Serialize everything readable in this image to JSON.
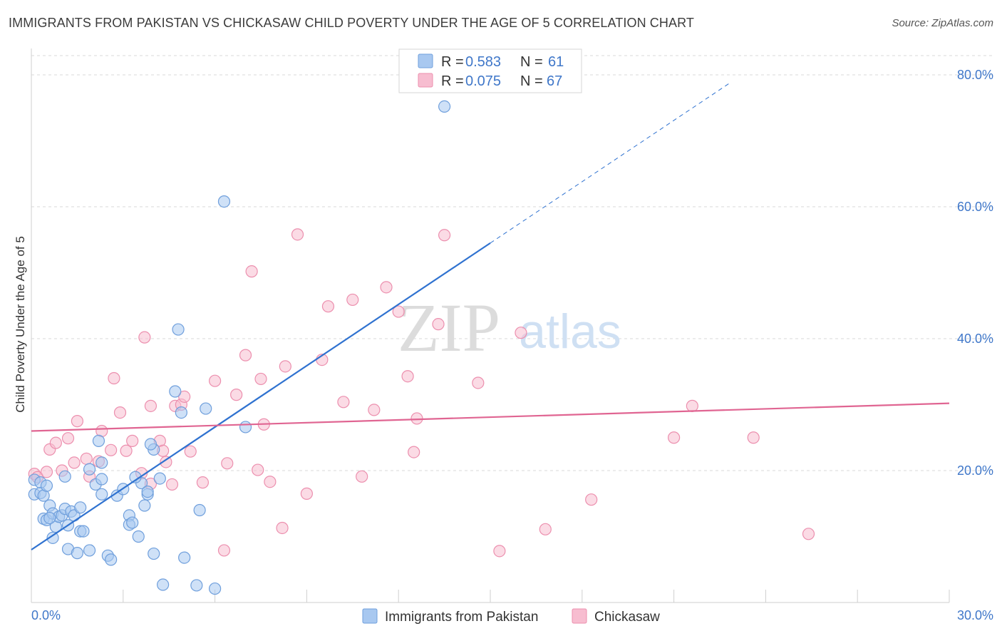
{
  "header": {
    "title": "IMMIGRANTS FROM PAKISTAN VS CHICKASAW CHILD POVERTY UNDER THE AGE OF 5 CORRELATION CHART",
    "source": "Source: ZipAtlas.com"
  },
  "watermark": {
    "zip": "ZIP",
    "atlas": "atlas"
  },
  "colors": {
    "blue_fill": "#a8c8f0",
    "blue_stroke": "#6f9fdc",
    "blue_line": "#2f72d0",
    "pink_fill": "#f7bdd0",
    "pink_stroke": "#ec8fae",
    "pink_line": "#e06592",
    "tick_text": "#3f77c9",
    "grid": "#d9d9d9"
  },
  "chart_data": {
    "type": "scatter",
    "title": "IMMIGRANTS FROM PAKISTAN VS CHICKASAW CHILD POVERTY UNDER THE AGE OF 5 CORRELATION CHART",
    "xlabel": "",
    "ylabel": "Child Poverty Under the Age of 5",
    "xlim": [
      0,
      30
    ],
    "ylim": [
      0,
      84
    ],
    "x_tick_labels": [
      "0.0%",
      "30.0%"
    ],
    "y_ticks": [
      20,
      40,
      60,
      80
    ],
    "y_tick_labels": [
      "20.0%",
      "40.0%",
      "60.0%",
      "80.0%"
    ],
    "legend": [
      {
        "r_label": "R =",
        "r_value": "0.583",
        "n_label": "N =",
        "n_value": "61"
      },
      {
        "r_label": "R =",
        "r_value": "0.075",
        "n_label": "N =",
        "n_value": "67"
      }
    ],
    "series": [
      {
        "name": "Immigrants from Pakistan",
        "trend": {
          "x0": 0,
          "y0": 8.0,
          "x1": 15,
          "y1": 54.5,
          "dash_to_x": 22.8
        },
        "points": [
          [
            0.1,
            18.6
          ],
          [
            0.1,
            16.4
          ],
          [
            0.3,
            18.2
          ],
          [
            0.3,
            16.6
          ],
          [
            0.4,
            16.2
          ],
          [
            0.5,
            17.7
          ],
          [
            0.6,
            14.7
          ],
          [
            0.4,
            12.7
          ],
          [
            0.5,
            12.5
          ],
          [
            0.7,
            13.5
          ],
          [
            0.7,
            9.8
          ],
          [
            0.8,
            11.5
          ],
          [
            0.9,
            13.0
          ],
          [
            1.0,
            13.2
          ],
          [
            1.1,
            14.2
          ],
          [
            1.2,
            11.7
          ],
          [
            1.3,
            13.8
          ],
          [
            1.4,
            13.2
          ],
          [
            1.2,
            8.1
          ],
          [
            1.6,
            14.4
          ],
          [
            1.6,
            10.8
          ],
          [
            1.7,
            10.8
          ],
          [
            1.5,
            7.5
          ],
          [
            1.9,
            7.9
          ],
          [
            2.3,
            16.4
          ],
          [
            2.1,
            17.9
          ],
          [
            2.5,
            7.1
          ],
          [
            2.6,
            6.5
          ],
          [
            2.8,
            16.2
          ],
          [
            3.0,
            17.2
          ],
          [
            3.2,
            13.2
          ],
          [
            3.2,
            11.8
          ],
          [
            3.3,
            12.1
          ],
          [
            3.5,
            10.0
          ],
          [
            3.6,
            18.1
          ],
          [
            3.4,
            19.0
          ],
          [
            3.8,
            16.4
          ],
          [
            3.7,
            14.7
          ],
          [
            4.0,
            23.2
          ],
          [
            4.2,
            18.8
          ],
          [
            4.0,
            7.4
          ],
          [
            4.3,
            2.7
          ],
          [
            5.0,
            6.8
          ],
          [
            5.4,
            2.6
          ],
          [
            5.5,
            14.0
          ],
          [
            6.0,
            2.1
          ],
          [
            4.7,
            32.0
          ],
          [
            4.9,
            28.8
          ],
          [
            5.7,
            29.4
          ],
          [
            7.0,
            26.6
          ],
          [
            4.8,
            41.4
          ],
          [
            2.3,
            21.2
          ],
          [
            1.9,
            20.2
          ],
          [
            2.3,
            18.7
          ],
          [
            1.1,
            19.1
          ],
          [
            2.2,
            24.5
          ],
          [
            3.9,
            24.0
          ],
          [
            6.3,
            60.8
          ],
          [
            13.5,
            75.2
          ],
          [
            3.8,
            16.8
          ],
          [
            0.6,
            12.8
          ]
        ]
      },
      {
        "name": "Chickasaw",
        "trend": {
          "x0": 0,
          "y0": 26.0,
          "x1": 30,
          "y1": 30.2
        },
        "points": [
          [
            0.1,
            19.5
          ],
          [
            0.2,
            19.0
          ],
          [
            0.5,
            19.8
          ],
          [
            0.6,
            23.2
          ],
          [
            0.8,
            24.2
          ],
          [
            1.0,
            20.0
          ],
          [
            1.2,
            24.9
          ],
          [
            1.4,
            21.2
          ],
          [
            1.5,
            27.5
          ],
          [
            1.8,
            21.8
          ],
          [
            1.9,
            19.1
          ],
          [
            2.2,
            21.4
          ],
          [
            2.3,
            26.0
          ],
          [
            2.6,
            23.1
          ],
          [
            2.7,
            34.0
          ],
          [
            2.9,
            28.8
          ],
          [
            3.1,
            23.0
          ],
          [
            3.3,
            24.5
          ],
          [
            3.6,
            19.6
          ],
          [
            3.7,
            40.2
          ],
          [
            3.9,
            18.0
          ],
          [
            3.9,
            29.8
          ],
          [
            4.2,
            24.5
          ],
          [
            4.3,
            23.0
          ],
          [
            4.4,
            21.3
          ],
          [
            4.6,
            17.9
          ],
          [
            4.7,
            29.8
          ],
          [
            4.9,
            30.0
          ],
          [
            5.0,
            31.2
          ],
          [
            5.2,
            22.9
          ],
          [
            5.6,
            18.2
          ],
          [
            6.0,
            33.6
          ],
          [
            6.3,
            7.9
          ],
          [
            6.4,
            21.1
          ],
          [
            6.7,
            31.5
          ],
          [
            7.0,
            37.5
          ],
          [
            7.2,
            50.2
          ],
          [
            7.4,
            20.1
          ],
          [
            7.5,
            33.9
          ],
          [
            7.6,
            27.0
          ],
          [
            7.8,
            18.3
          ],
          [
            8.2,
            11.3
          ],
          [
            8.3,
            35.8
          ],
          [
            8.7,
            55.8
          ],
          [
            9.0,
            16.5
          ],
          [
            9.5,
            36.8
          ],
          [
            9.7,
            44.9
          ],
          [
            10.2,
            30.4
          ],
          [
            10.5,
            45.9
          ],
          [
            10.8,
            19.1
          ],
          [
            11.2,
            29.2
          ],
          [
            11.6,
            47.8
          ],
          [
            12.0,
            44.1
          ],
          [
            12.3,
            34.3
          ],
          [
            12.5,
            22.8
          ],
          [
            12.6,
            27.9
          ],
          [
            13.5,
            55.7
          ],
          [
            13.3,
            42.2
          ],
          [
            14.6,
            33.3
          ],
          [
            15.3,
            7.8
          ],
          [
            16.0,
            40.9
          ],
          [
            16.8,
            11.1
          ],
          [
            18.3,
            15.6
          ],
          [
            21.0,
            25.0
          ],
          [
            21.6,
            29.8
          ],
          [
            23.6,
            25.0
          ],
          [
            25.4,
            10.4
          ]
        ]
      }
    ]
  },
  "bottom_legend": {
    "series1": "Immigrants from Pakistan",
    "series2": "Chickasaw"
  }
}
